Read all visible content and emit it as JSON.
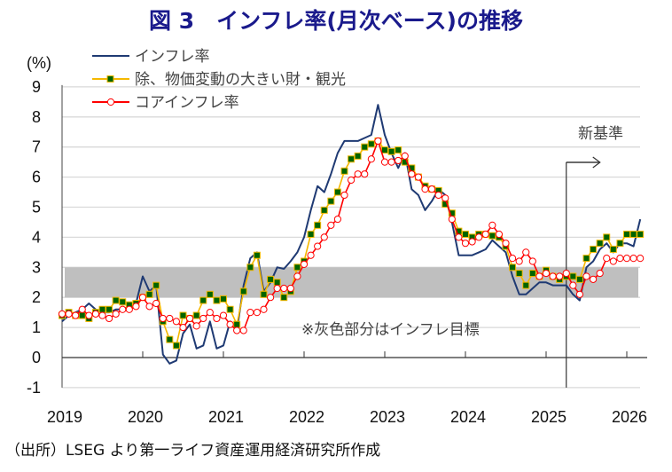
{
  "title": "図 3　インフレ率(月次ベース)の推移",
  "source": "（出所）LSEG より第一ライフ資産運用経済研究所作成",
  "chart_data": {
    "type": "line",
    "title": "図 3　インフレ率(月次ベース)の推移",
    "ylabel": "(%)",
    "xlabel": "",
    "ylim": [
      -1,
      9
    ],
    "yticks": [
      "-1",
      "0",
      "1",
      "2",
      "3",
      "4",
      "5",
      "6",
      "7",
      "8",
      "9"
    ],
    "xticks": [
      "2019",
      "2020",
      "2021",
      "2022",
      "2023",
      "2024",
      "2025",
      "2026"
    ],
    "x_start": "2019-01",
    "x_frequency": "monthly",
    "grid": true,
    "legend_position": "top-left",
    "target_band": {
      "low": 2,
      "high": 3,
      "label": "※灰色部分はインフレ目標"
    },
    "annotation": {
      "label": "新基準",
      "at_index": 75
    },
    "series": [
      {
        "name": "インフレ率",
        "color": "#1f3a73",
        "marker": "none",
        "values": [
          1.2,
          1.4,
          1.5,
          1.6,
          1.8,
          1.6,
          1.5,
          1.5,
          1.6,
          1.6,
          1.7,
          1.8,
          2.7,
          2.2,
          2.4,
          0.1,
          -0.2,
          -0.1,
          0.8,
          1.1,
          0.3,
          0.4,
          1.2,
          0.3,
          0.4,
          1.2,
          0.9,
          2.4,
          3.3,
          3.5,
          2.2,
          2.5,
          3.0,
          2.95,
          3.2,
          3.5,
          4.0,
          4.9,
          5.7,
          5.5,
          6.1,
          6.8,
          7.2,
          7.2,
          7.2,
          7.3,
          7.4,
          8.4,
          7.4,
          6.8,
          6.3,
          6.8,
          5.6,
          5.4,
          4.9,
          5.2,
          5.6,
          5.4,
          4.5,
          3.4,
          3.4,
          3.4,
          3.5,
          3.6,
          3.9,
          3.7,
          3.5,
          2.7,
          2.1,
          2.1,
          2.3,
          2.5,
          2.5,
          2.4,
          2.4,
          2.4,
          2.1,
          1.9,
          3.0,
          3.2,
          3.6,
          3.8,
          3.5,
          3.8,
          3.8,
          3.7,
          4.6
        ]
      },
      {
        "name": "除、物価変動の大きい財・観光",
        "color": "#f5b800",
        "marker": "square",
        "marker_color": "#006400",
        "values": [
          1.4,
          1.5,
          1.4,
          1.4,
          1.3,
          1.5,
          1.6,
          1.6,
          1.9,
          1.85,
          1.75,
          1.8,
          2.0,
          2.1,
          2.4,
          1.2,
          0.6,
          0.4,
          1.4,
          1.3,
          1.4,
          1.9,
          2.1,
          1.9,
          1.95,
          1.6,
          1.1,
          2.2,
          3.0,
          3.4,
          2.1,
          2.6,
          2.5,
          2.0,
          2.2,
          3.0,
          3.2,
          4.1,
          4.4,
          4.9,
          5.2,
          5.5,
          6.2,
          6.6,
          6.7,
          7.0,
          7.1,
          7.2,
          6.9,
          6.85,
          6.9,
          6.5,
          6.3,
          6.0,
          5.7,
          5.6,
          5.55,
          5.1,
          4.8,
          4.2,
          4.1,
          4.0,
          4.1,
          4.1,
          4.05,
          4.0,
          3.7,
          3.0,
          2.8,
          2.4,
          2.8,
          2.7,
          2.9,
          2.7,
          2.6,
          2.7,
          2.7,
          2.6,
          3.3,
          3.6,
          3.8,
          4.0,
          3.6,
          3.8,
          4.1,
          4.1,
          4.1
        ]
      },
      {
        "name": "コアインフレ率",
        "color": "#ff0000",
        "marker": "circle",
        "marker_color": "#ffffff",
        "values": [
          1.45,
          1.45,
          1.4,
          1.6,
          1.4,
          1.45,
          1.4,
          1.3,
          1.45,
          1.6,
          1.6,
          1.7,
          2.0,
          1.7,
          1.8,
          1.3,
          1.3,
          1.2,
          1.0,
          1.3,
          1.05,
          1.3,
          1.5,
          1.3,
          1.4,
          1.1,
          0.9,
          0.9,
          1.5,
          1.5,
          1.6,
          2.0,
          2.3,
          2.3,
          2.3,
          2.7,
          3.1,
          3.4,
          3.7,
          4.0,
          4.4,
          4.6,
          5.4,
          5.9,
          6.1,
          6.1,
          6.6,
          7.2,
          6.5,
          6.5,
          6.55,
          6.7,
          6.1,
          6.0,
          5.6,
          5.6,
          5.4,
          5.3,
          4.6,
          4.0,
          3.8,
          3.85,
          4.0,
          4.1,
          4.4,
          4.1,
          3.8,
          3.3,
          3.2,
          3.5,
          3.2,
          2.7,
          2.8,
          2.7,
          2.7,
          2.8,
          2.4,
          2.1,
          2.7,
          2.6,
          2.8,
          3.3,
          3.2,
          3.3,
          3.3,
          3.3,
          3.3
        ]
      }
    ]
  }
}
